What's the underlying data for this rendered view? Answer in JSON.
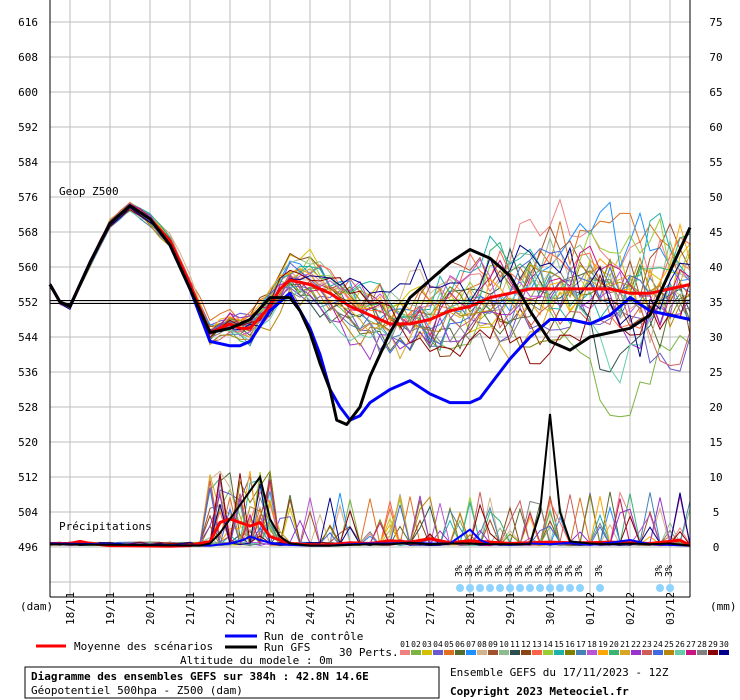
{
  "chart_data": {
    "type": "line",
    "title": "Diagramme des ensembles GEFS sur 384h : 42.8N 14.6E",
    "subtitle": "Géopotentiel 500hpa - Z500 (dam)",
    "run_label": "Ensemble GEFS du 17/11/2023 - 12Z",
    "copyright": "Copyright 2023 Meteociel.fr",
    "altitude": "Altitude du modele : 0m",
    "geop_label": "Geop Z500",
    "precip_label": "Précipitations",
    "left_unit": "(dam)",
    "right_unit": "(mm)",
    "y_ticks": [
      616,
      608,
      600,
      592,
      584,
      576,
      568,
      560,
      552,
      544,
      536,
      528,
      520,
      512,
      504,
      496
    ],
    "ylim": [
      496,
      616
    ],
    "reference_line": 552,
    "y2_ticks": [
      75,
      70,
      65,
      60,
      55,
      50,
      45,
      40,
      35,
      30,
      25,
      20,
      15,
      10,
      5,
      0
    ],
    "ylim2": [
      0,
      75
    ],
    "x_labels": [
      "18/11",
      "19/11",
      "20/11",
      "21/11",
      "22/11",
      "23/11",
      "24/11",
      "25/11",
      "26/11",
      "27/11",
      "28/11",
      "29/11",
      "30/11",
      "01/12",
      "02/12",
      "03/12"
    ],
    "x_hours": [
      12,
      36,
      60,
      84,
      108,
      132,
      156,
      180,
      204,
      228,
      252,
      276,
      300,
      324,
      348,
      372
    ],
    "xlim_hours": [
      0,
      384
    ],
    "legend": {
      "mean": {
        "label": "Moyenne des scénarios",
        "color": "#ff0000"
      },
      "control": {
        "label": "Run de contrôle",
        "color": "#0000ff"
      },
      "gfs": {
        "label": "Run GFS",
        "color": "#000000"
      },
      "perts_label": "30 Perts.",
      "perts": [
        {
          "n": "01",
          "color": "#f08080"
        },
        {
          "n": "02",
          "color": "#7cb342"
        },
        {
          "n": "03",
          "color": "#d4c000"
        },
        {
          "n": "04",
          "color": "#6a5acd"
        },
        {
          "n": "05",
          "color": "#e07020"
        },
        {
          "n": "06",
          "color": "#556b2f"
        },
        {
          "n": "07",
          "color": "#1e90ff"
        },
        {
          "n": "08",
          "color": "#d2b48c"
        },
        {
          "n": "09",
          "color": "#a0522d"
        },
        {
          "n": "10",
          "color": "#8fbc8f"
        },
        {
          "n": "11",
          "color": "#2f4f4f"
        },
        {
          "n": "12",
          "color": "#8b4513"
        },
        {
          "n": "13",
          "color": "#ff6347"
        },
        {
          "n": "14",
          "color": "#9acd32"
        },
        {
          "n": "15",
          "color": "#20b2aa"
        },
        {
          "n": "16",
          "color": "#808000"
        },
        {
          "n": "17",
          "color": "#4682b4"
        },
        {
          "n": "18",
          "color": "#ba55d3"
        },
        {
          "n": "19",
          "color": "#ffa500"
        },
        {
          "n": "20",
          "color": "#3cb371"
        },
        {
          "n": "21",
          "color": "#daa520"
        },
        {
          "n": "22",
          "color": "#9932cc"
        },
        {
          "n": "23",
          "color": "#cd5c5c"
        },
        {
          "n": "24",
          "color": "#4169e1"
        },
        {
          "n": "25",
          "color": "#b8860b"
        },
        {
          "n": "26",
          "color": "#66cdaa"
        },
        {
          "n": "27",
          "color": "#c71585"
        },
        {
          "n": "28",
          "color": "#808080"
        },
        {
          "n": "29",
          "color": "#8b0000"
        },
        {
          "n": "30",
          "color": "#00008b"
        }
      ]
    },
    "series": [
      {
        "key": "mean",
        "color": "#ff0000",
        "width": 3,
        "x": [
          0,
          6,
          12,
          24,
          36,
          48,
          60,
          72,
          84,
          96,
          108,
          114,
          120,
          132,
          138,
          144,
          156,
          168,
          180,
          192,
          204,
          216,
          228,
          240,
          252,
          264,
          276,
          288,
          300,
          312,
          324,
          336,
          348,
          360,
          372,
          384
        ],
        "y": [
          556,
          552,
          551,
          561,
          570,
          574,
          571,
          566,
          556,
          545,
          547,
          546,
          546,
          551,
          555,
          557,
          556,
          554,
          551,
          549,
          547,
          547,
          548,
          550,
          551,
          553,
          554,
          555,
          555,
          555,
          555,
          555,
          554,
          554,
          555,
          556
        ]
      },
      {
        "key": "control",
        "color": "#0000ff",
        "width": 3,
        "x": [
          0,
          6,
          12,
          24,
          36,
          48,
          60,
          72,
          84,
          96,
          108,
          114,
          120,
          132,
          144,
          150,
          156,
          162,
          168,
          174,
          180,
          186,
          192,
          204,
          216,
          228,
          240,
          252,
          258,
          264,
          276,
          288,
          300,
          312,
          324,
          336,
          348,
          360,
          372,
          384
        ],
        "y": [
          556,
          552,
          551,
          561,
          570,
          574,
          571,
          565,
          555,
          543,
          542,
          542,
          543,
          550,
          554,
          550,
          546,
          540,
          532,
          528,
          525,
          526,
          529,
          532,
          534,
          531,
          529,
          529,
          530,
          533,
          539,
          544,
          548,
          548,
          547,
          549,
          553,
          550,
          549,
          548
        ]
      },
      {
        "key": "gfs",
        "color": "#000000",
        "width": 3,
        "x": [
          0,
          6,
          12,
          24,
          36,
          48,
          60,
          72,
          84,
          96,
          108,
          114,
          120,
          132,
          144,
          150,
          156,
          162,
          168,
          172,
          178,
          186,
          192,
          204,
          216,
          228,
          240,
          252,
          258,
          264,
          276,
          288,
          300,
          312,
          324,
          336,
          348,
          360,
          372,
          384
        ],
        "y": [
          556,
          552,
          551,
          561,
          570,
          574,
          571,
          565,
          555,
          545,
          546,
          547,
          548,
          553,
          553,
          550,
          545,
          538,
          532,
          525,
          524,
          528,
          535,
          545,
          553,
          557,
          561,
          564,
          563,
          562,
          558,
          550,
          543,
          541,
          544,
          545,
          546,
          549,
          559,
          569
        ]
      }
    ],
    "precip_series": [
      {
        "key": "mean",
        "color": "#ff0000",
        "width": 3,
        "x": [
          0,
          12,
          18,
          24,
          36,
          72,
          84,
          96,
          102,
          108,
          114,
          120,
          126,
          132,
          138,
          144,
          156,
          168,
          180,
          192,
          204,
          216,
          228,
          240,
          252,
          264,
          276,
          288,
          300,
          312,
          324,
          336,
          348,
          360,
          372,
          378,
          384
        ],
        "y": [
          0.5,
          0.5,
          0.8,
          0.5,
          0.2,
          0.1,
          0.2,
          0.8,
          3.5,
          4,
          3.5,
          3,
          3.5,
          1.5,
          1,
          0.5,
          0.3,
          0.3,
          0.6,
          0.5,
          0.9,
          0.7,
          1.2,
          0.6,
          0.9,
          0.7,
          0.5,
          0.6,
          0.7,
          0.6,
          0.6,
          0.7,
          0.6,
          0.5,
          0.8,
          1,
          0.2
        ]
      },
      {
        "key": "control",
        "color": "#0000ff",
        "width": 2,
        "x": [
          0,
          96,
          108,
          116,
          120,
          126,
          132,
          144,
          156,
          168,
          180,
          192,
          204,
          216,
          228,
          240,
          246,
          252,
          258,
          264,
          276,
          288,
          300,
          312,
          324,
          336,
          348,
          360,
          372,
          384
        ],
        "y": [
          0.5,
          0.2,
          0.5,
          1,
          1.5,
          1,
          0.6,
          0.3,
          0.2,
          0.2,
          0.4,
          0.5,
          0.5,
          0.6,
          0.5,
          0.5,
          1.5,
          2.5,
          1,
          0.4,
          0.3,
          0.5,
          0.4,
          0.6,
          0.3,
          0.6,
          1,
          0.4,
          0.3,
          0.2
        ]
      },
      {
        "key": "gfs",
        "color": "#000000",
        "width": 2,
        "x": [
          0,
          90,
          96,
          102,
          108,
          114,
          120,
          126,
          132,
          138,
          144,
          156,
          168,
          180,
          192,
          204,
          216,
          228,
          240,
          252,
          264,
          276,
          288,
          294,
          300,
          306,
          312,
          324,
          336,
          348,
          360,
          372,
          384
        ],
        "y": [
          0.4,
          0.2,
          0.5,
          2,
          4,
          6,
          8,
          10,
          4,
          1.5,
          0.5,
          0.2,
          0.2,
          0.3,
          0.4,
          0.4,
          0.6,
          0.4,
          0.5,
          0.5,
          0.4,
          0.4,
          0.4,
          5,
          19,
          5,
          0.8,
          0.5,
          0.4,
          0.5,
          0.4,
          0.5,
          0.2
        ]
      }
    ],
    "perturbation_traces": "30 ensemble members (thin colored lines, not individually labelled)",
    "snow_symbols": {
      "label": "3%",
      "hours": [
        246,
        252,
        258,
        264,
        270,
        276,
        282,
        288,
        294,
        300,
        306,
        312,
        318,
        330,
        366,
        372
      ]
    }
  }
}
